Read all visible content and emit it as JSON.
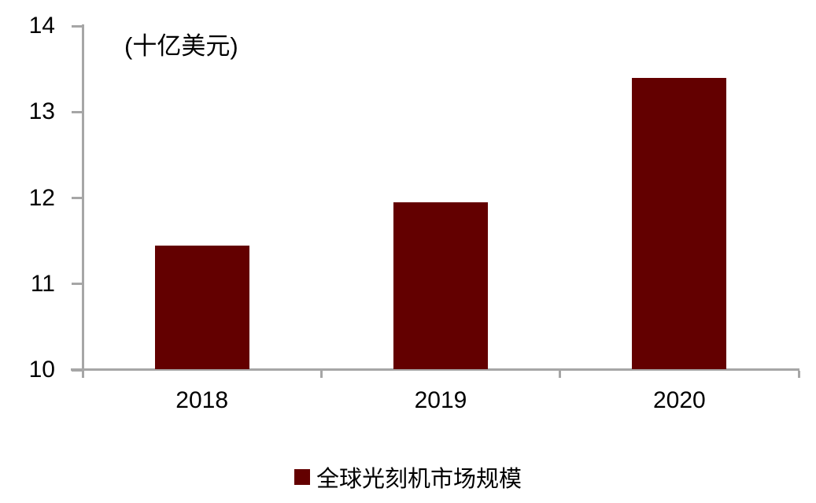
{
  "chart_data": {
    "type": "bar",
    "title": "(十亿美元)",
    "categories": [
      "2018",
      "2019",
      "2020"
    ],
    "values": [
      11.45,
      11.95,
      13.4
    ],
    "series_name": "全球光刻机市场规模",
    "legend": [
      "全球光刻机市场规模"
    ],
    "legend_position": "bottom",
    "ylim": [
      10,
      14
    ],
    "yticks": [
      "10",
      "11",
      "12",
      "13",
      "14"
    ],
    "grid": false,
    "bar_color": "#630000",
    "axis_color": "#a6a6a6",
    "text_color": "#000000"
  }
}
